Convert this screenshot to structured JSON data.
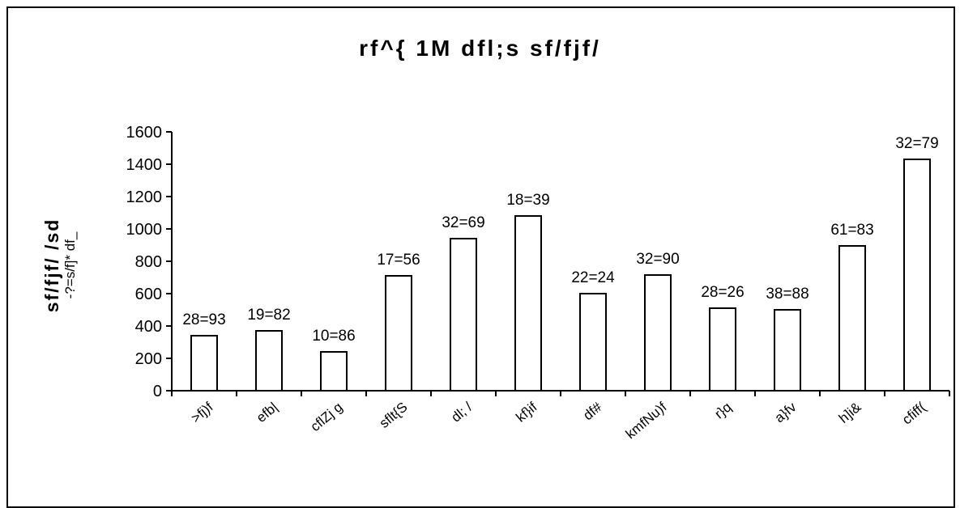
{
  "chart_data": {
    "type": "bar",
    "title": "rf^{ 1M dfl;s sf/fjf/",
    "ylabel": "sf/fjf/ /sd",
    "ylabel_sub": "-?=s/f]* df_",
    "xlabel": "",
    "categories": [
      ">fj)f",
      "efb|",
      "cflZj g",
      "sflt{S",
      "dl; /",
      "kf}if",
      "df#",
      "kmfNu)f",
      "r}q",
      "a}fv",
      "h]i&",
      "cfiff("
    ],
    "values": [
      340,
      370,
      240,
      710,
      940,
      1080,
      600,
      715,
      510,
      500,
      895,
      1430
    ],
    "data_labels": [
      "28=93",
      "19=82",
      "10=86",
      "17=56",
      "32=69",
      "18=39",
      "22=24",
      "32=90",
      "28=26",
      "38=88",
      "61=83",
      "32=79"
    ],
    "ylim": [
      0,
      1600
    ],
    "yticks": [
      0,
      200,
      400,
      600,
      800,
      1000,
      1200,
      1400,
      1600
    ],
    "grid": false,
    "bar_fill": "#ffffff",
    "bar_stroke": "#000000"
  }
}
